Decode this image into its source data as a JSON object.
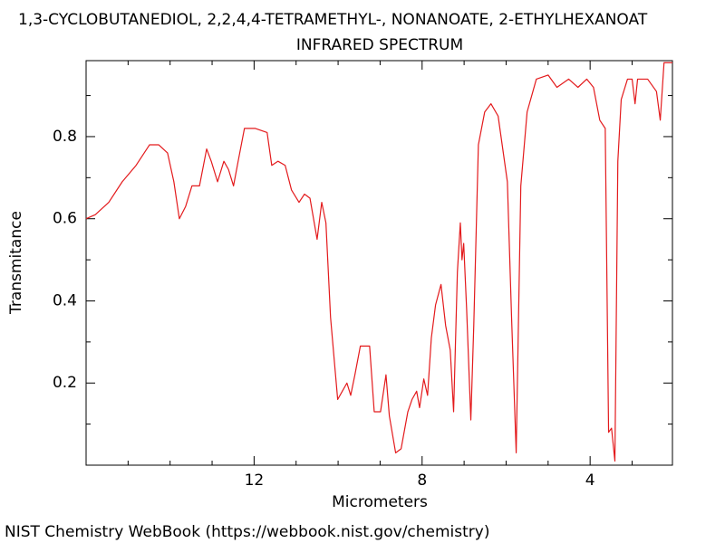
{
  "chart_data": {
    "type": "line",
    "title": "1,3-CYCLOBUTANEDIOL, 2,2,4,4-TETRAMETHYL-, NONANOATE, 2-ETHYLHEXANOAT",
    "subtitle": "INFRARED SPECTRUM",
    "xlabel": "Micrometers",
    "ylabel": "Transmitance",
    "footer": "NIST Chemistry WebBook (https://webbook.nist.gov/chemistry)",
    "color": "#e31a1c",
    "xlim": [
      16,
      2.04
    ],
    "ylim": [
      0,
      0.985
    ],
    "xticks": [
      12,
      8,
      4
    ],
    "yticks": [
      0.2,
      0.4,
      0.6,
      0.8
    ],
    "xminorticks": [
      15,
      14,
      13,
      11,
      10,
      9,
      7,
      6,
      5,
      3
    ],
    "yminorticks": [
      0.1,
      0.3,
      0.5,
      0.7,
      0.9
    ],
    "x": [
      16.0,
      15.78,
      15.46,
      15.14,
      14.81,
      14.49,
      14.27,
      14.06,
      13.91,
      13.78,
      13.63,
      13.48,
      13.3,
      13.13,
      13.02,
      12.87,
      12.72,
      12.61,
      12.49,
      12.38,
      12.23,
      11.97,
      11.69,
      11.58,
      11.43,
      11.26,
      11.11,
      10.93,
      10.8,
      10.67,
      10.5,
      10.39,
      10.29,
      10.18,
      10.07,
      10.01,
      9.9,
      9.79,
      9.7,
      9.6,
      9.47,
      9.36,
      9.25,
      9.14,
      8.99,
      8.86,
      8.78,
      8.63,
      8.5,
      8.34,
      8.24,
      8.13,
      8.06,
      7.96,
      7.87,
      7.78,
      7.68,
      7.55,
      7.44,
      7.33,
      7.25,
      7.16,
      7.09,
      7.05,
      7.01,
      6.94,
      6.84,
      6.77,
      6.66,
      6.51,
      6.36,
      6.19,
      5.97,
      5.87,
      5.76,
      5.65,
      5.5,
      5.28,
      5.0,
      4.79,
      4.51,
      4.29,
      4.08,
      3.92,
      3.77,
      3.64,
      3.56,
      3.49,
      3.41,
      3.34,
      3.26,
      3.11,
      3.0,
      2.93,
      2.87,
      2.63,
      2.42,
      2.33,
      2.24,
      2.04
    ],
    "values": [
      0.6,
      0.61,
      0.64,
      0.69,
      0.73,
      0.78,
      0.78,
      0.76,
      0.69,
      0.6,
      0.63,
      0.68,
      0.68,
      0.77,
      0.74,
      0.69,
      0.74,
      0.72,
      0.68,
      0.74,
      0.82,
      0.82,
      0.81,
      0.73,
      0.74,
      0.73,
      0.67,
      0.64,
      0.66,
      0.65,
      0.55,
      0.64,
      0.59,
      0.36,
      0.23,
      0.16,
      0.18,
      0.2,
      0.17,
      0.22,
      0.29,
      0.29,
      0.29,
      0.13,
      0.13,
      0.22,
      0.12,
      0.03,
      0.04,
      0.13,
      0.16,
      0.18,
      0.14,
      0.21,
      0.17,
      0.31,
      0.39,
      0.44,
      0.34,
      0.28,
      0.13,
      0.47,
      0.59,
      0.5,
      0.54,
      0.38,
      0.11,
      0.34,
      0.78,
      0.86,
      0.88,
      0.85,
      0.69,
      0.36,
      0.03,
      0.68,
      0.86,
      0.94,
      0.95,
      0.92,
      0.94,
      0.92,
      0.94,
      0.92,
      0.84,
      0.82,
      0.08,
      0.09,
      0.01,
      0.74,
      0.89,
      0.94,
      0.94,
      0.88,
      0.94,
      0.94,
      0.91,
      0.84,
      0.98,
      0.98
    ]
  }
}
